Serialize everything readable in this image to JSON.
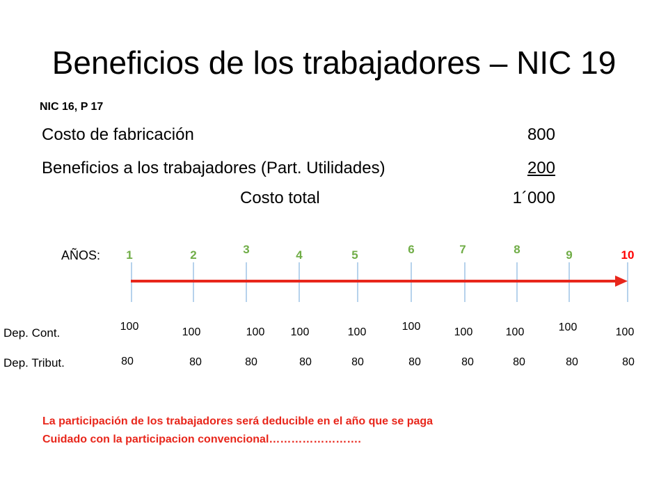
{
  "slide": {
    "title": "Beneficios de los trabajadores – NIC 19",
    "reference": "NIC 16, P 17"
  },
  "costs": {
    "fabricacion_label": "Costo de fabricación",
    "fabricacion_value": "800",
    "beneficios_label": "Beneficios a los trabajadores (Part. Utilidades)",
    "beneficios_value": "200",
    "total_label": "Costo total",
    "total_value": "1´000"
  },
  "timeline": {
    "years_label": "AÑOS:",
    "years": [
      "1",
      "2",
      "3",
      "4",
      "5",
      "6",
      "7",
      "8",
      "9",
      "10"
    ],
    "year_color": "#70ad47",
    "last_year_color": "#ff0000",
    "arrow_color": "#e8261b",
    "tick_color": "#9dc3e6"
  },
  "rows": {
    "dep_cont_label": "Dep. Cont.",
    "dep_cont_values": [
      "100",
      "100",
      "100",
      "100",
      "100",
      "100",
      "100",
      "100",
      "100",
      "100"
    ],
    "dep_tribut_label": "Dep. Tribut.",
    "dep_tribut_values": [
      "80",
      "80",
      "80",
      "80",
      "80",
      "80",
      "80",
      "80",
      "80",
      "80"
    ]
  },
  "notes": {
    "line1": "La participación de los trabajadores será deducible en el año que se paga",
    "line2": "Cuidado con la participacion convencional……………………."
  }
}
